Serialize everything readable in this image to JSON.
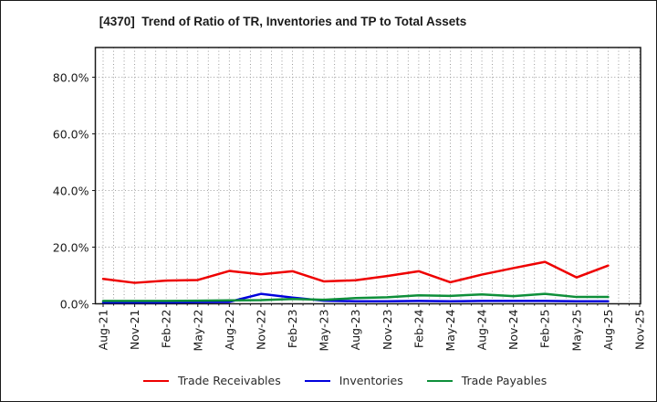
{
  "chart_data": {
    "type": "line",
    "title": "[4370]  Trend of Ratio of TR, Inventories and TP to Total Assets",
    "x_labels": [
      "Aug-21",
      "Nov-21",
      "Feb-22",
      "May-22",
      "Aug-22",
      "Nov-22",
      "Feb-23",
      "May-23",
      "Aug-23",
      "Nov-23",
      "Feb-24",
      "May-24",
      "Aug-24",
      "Nov-24",
      "Feb-25",
      "May-25",
      "Aug-25",
      "Nov-25"
    ],
    "ytick_labels": [
      "0.0%",
      "20.0%",
      "40.0%",
      "60.0%",
      "80.0%"
    ],
    "yticks_percent": [
      0,
      20,
      40,
      60,
      80
    ],
    "ylim": [
      0,
      90.5
    ],
    "grid": {
      "horizontal": "dotted",
      "vertical": "dotted-monthly",
      "months_per_labeled_tick": 3
    },
    "legend_position": "bottom",
    "axis_color": "#1a1a1a",
    "grid_color": "#909090",
    "series": [
      {
        "name": "Trade Receivables",
        "color": "#ee0000",
        "values": [
          8.8,
          7.4,
          8.2,
          8.4,
          11.6,
          10.4,
          11.5,
          7.9,
          8.3,
          9.8,
          11.5,
          7.6,
          10.3,
          12.6,
          14.8,
          9.3,
          13.5
        ]
      },
      {
        "name": "Inventories",
        "color": "#0000dd",
        "values": [
          0.5,
          0.5,
          0.5,
          0.6,
          0.7,
          3.5,
          2.2,
          1.1,
          0.9,
          0.9,
          1.0,
          0.9,
          1.0,
          1.0,
          1.0,
          0.9,
          0.9
        ]
      },
      {
        "name": "Trade Payables",
        "color": "#0e8f3a",
        "values": [
          1.0,
          1.0,
          1.0,
          1.1,
          1.2,
          1.3,
          1.7,
          1.4,
          2.0,
          2.3,
          3.0,
          2.8,
          3.3,
          2.7,
          3.5,
          2.4,
          2.4
        ]
      }
    ]
  }
}
